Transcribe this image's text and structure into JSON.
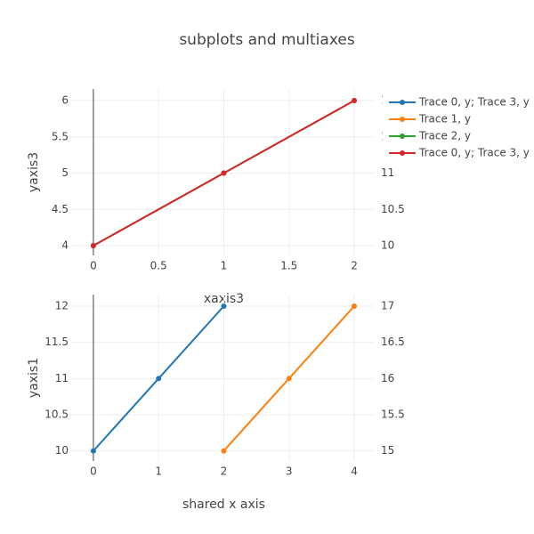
{
  "title": "subplots and multiaxes",
  "chart_data": [
    {
      "type": "line",
      "xlabel": "xaxis3",
      "ylabel": "yaxis3",
      "xlim": [
        -0.17,
        2.15
      ],
      "xticks": [
        0,
        0.5,
        1,
        1.5,
        2
      ],
      "ylim": [
        3.865,
        6.16
      ],
      "yticks": [
        4,
        4.5,
        5,
        5.5,
        6
      ],
      "y2lim": [
        9.865,
        12.16
      ],
      "y2ticks": [
        10,
        10.5,
        11,
        11.5,
        12
      ],
      "grid": true,
      "series": [
        {
          "name": "Trace 2, y",
          "color": "#2ca02c",
          "axis": "y2",
          "x": [
            0,
            1,
            2
          ],
          "values": [
            10,
            11,
            12
          ]
        },
        {
          "name": "Trace 0, y; Trace 3, y",
          "color": "#d62728",
          "x": [
            0,
            1,
            2
          ],
          "values": [
            4,
            5,
            6
          ]
        }
      ]
    },
    {
      "type": "line",
      "xlabel": "shared x axis",
      "ylabel": "yaxis1",
      "xlim": [
        -0.34,
        4.3
      ],
      "xticks": [
        0,
        1,
        2,
        3,
        4
      ],
      "ylim": [
        9.86,
        12.16
      ],
      "yticks": [
        10,
        10.5,
        11,
        11.5,
        12
      ],
      "y2lim": [
        14.86,
        17.16
      ],
      "y2ticks": [
        15,
        15.5,
        16,
        16.5,
        17
      ],
      "grid": true,
      "series": [
        {
          "name": "Trace 0, y; Trace 3, y",
          "color": "#1f77b4",
          "x": [
            0,
            1,
            2
          ],
          "values": [
            10,
            11,
            12
          ]
        },
        {
          "name": "Trace 1, y",
          "color": "#ff7f0e",
          "axis": "y2",
          "x": [
            2,
            3,
            4
          ],
          "values": [
            15,
            16,
            17
          ]
        }
      ]
    }
  ]
}
